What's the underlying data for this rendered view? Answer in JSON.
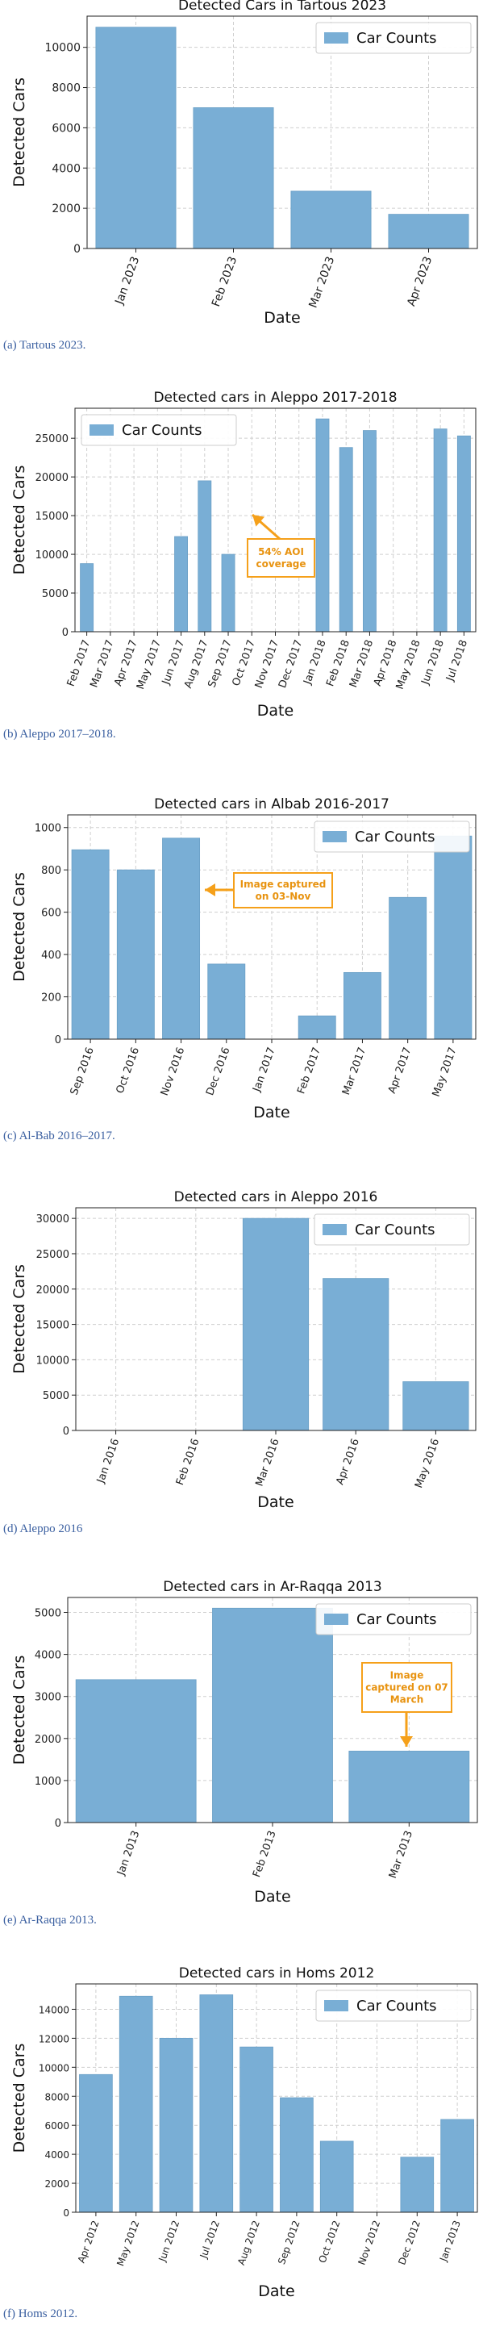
{
  "chart_data": [
    {
      "type": "bar",
      "title": "Detected Cars in Tartous 2023",
      "xlabel": "Date",
      "ylabel": "Detected Cars",
      "categories": [
        "Jan 2023",
        "Feb 2023",
        "Mar 2023",
        "Apr 2023"
      ],
      "series": [
        {
          "name": "Car Counts",
          "values": [
            11000,
            7000,
            2850,
            1700
          ]
        }
      ],
      "yticks": [
        "0",
        "2000",
        "4000",
        "6000",
        "8000",
        "10000"
      ],
      "ylim": [
        0,
        11550
      ],
      "grid": true,
      "legend": "top-right",
      "caption": "(a) Tartous 2023."
    },
    {
      "type": "bar",
      "title": "Detected cars in Aleppo 2017-2018",
      "xlabel": "Date",
      "ylabel": "Detected Cars",
      "categories": [
        "Feb 2017",
        "Mar 2017",
        "Apr 2017",
        "May 2017",
        "Jun 2017",
        "Aug 2017",
        "Sep 2017",
        "Oct 2017",
        "Nov 2017",
        "Dec 2017",
        "Jan 2018",
        "Feb 2018",
        "Mar 2018",
        "Apr 2018",
        "May 2018",
        "Jun 2018",
        "Jul 2018"
      ],
      "series": [
        {
          "name": "Car Counts",
          "values": [
            8800,
            0,
            0,
            0,
            12300,
            19500,
            10000,
            0,
            0,
            0,
            27500,
            23800,
            26000,
            0,
            0,
            26200,
            25300
          ]
        }
      ],
      "yticks": [
        "0",
        "5000",
        "10000",
        "15000",
        "20000",
        "25000"
      ],
      "ylim": [
        0,
        28875
      ],
      "grid": true,
      "legend": "top-left",
      "annotations": [
        {
          "text": [
            "54% AOI",
            "coverage"
          ],
          "target_category": "Sep 2017"
        }
      ],
      "caption": "(b) Aleppo 2017–2018."
    },
    {
      "type": "bar",
      "title": "Detected cars in Albab 2016-2017",
      "xlabel": "Date",
      "ylabel": "Detected Cars",
      "categories": [
        "Sep 2016",
        "Oct 2016",
        "Nov 2016",
        "Dec 2016",
        "Jan 2017",
        "Feb 2017",
        "Mar 2017",
        "Apr 2017",
        "May 2017"
      ],
      "series": [
        {
          "name": "Car Counts",
          "values": [
            895,
            800,
            950,
            355,
            0,
            110,
            315,
            670,
            960
          ]
        }
      ],
      "yticks": [
        "0",
        "200",
        "400",
        "600",
        "800",
        "1000"
      ],
      "ylim": [
        0,
        1060
      ],
      "grid": true,
      "legend": "top-right",
      "annotations": [
        {
          "text": [
            "Image captured",
            "on 03-Nov"
          ],
          "target_category": "Nov 2016"
        }
      ],
      "caption": "(c) Al-Bab 2016–2017."
    },
    {
      "type": "bar",
      "title": "Detected cars in Aleppo 2016",
      "xlabel": "Date",
      "ylabel": "Detected Cars",
      "categories": [
        "Jan 2016",
        "Feb 2016",
        "Mar 2016",
        "Apr 2016",
        "May 2016"
      ],
      "series": [
        {
          "name": "Car Counts",
          "values": [
            0,
            0,
            30000,
            21500,
            6900
          ]
        }
      ],
      "yticks": [
        "0",
        "5000",
        "10000",
        "15000",
        "20000",
        "25000",
        "30000"
      ],
      "ylim": [
        0,
        31500
      ],
      "grid": true,
      "legend": "top-right",
      "caption": "(d) Aleppo 2016"
    },
    {
      "type": "bar",
      "title": "Detected cars in Ar-Raqqa 2013",
      "xlabel": "Date",
      "ylabel": "Detected Cars",
      "categories": [
        "Jan 2013",
        "Feb 2013",
        "Mar 2013"
      ],
      "series": [
        {
          "name": "Car Counts",
          "values": [
            3400,
            5100,
            1700
          ]
        }
      ],
      "yticks": [
        "0",
        "1000",
        "2000",
        "3000",
        "4000",
        "5000"
      ],
      "ylim": [
        0,
        5355
      ],
      "grid": true,
      "legend": "top-right",
      "annotations": [
        {
          "text": [
            "Image",
            "captured on 07",
            "March"
          ],
          "target_category": "Mar 2013"
        }
      ],
      "caption": "(e) Ar-Raqqa 2013."
    },
    {
      "type": "bar",
      "title": "Detected cars in Homs 2012",
      "xlabel": "Date",
      "ylabel": "Detected Cars",
      "categories": [
        "Apr 2012",
        "May 2012",
        "Jun 2012",
        "Jul 2012",
        "Aug 2012",
        "Sep 2012",
        "Oct 2012",
        "Nov 2012",
        "Dec 2012",
        "Jan 2013"
      ],
      "series": [
        {
          "name": "Car Counts",
          "values": [
            9500,
            14900,
            12000,
            15000,
            11400,
            7900,
            4900,
            0,
            3800,
            6400
          ]
        }
      ],
      "yticks": [
        "0",
        "2000",
        "4000",
        "6000",
        "8000",
        "10000",
        "12000",
        "14000"
      ],
      "ylim": [
        0,
        15750
      ],
      "grid": true,
      "legend": "top-right",
      "caption": "(f) Homs 2012."
    }
  ],
  "colors": {
    "bar": "#79aed5",
    "bar_edge": "#6a9fc6",
    "annotation": "#f5a01a",
    "annotation_text": "#e89310",
    "grid": "#cfcfcf",
    "caption": "#3a5fa0"
  }
}
